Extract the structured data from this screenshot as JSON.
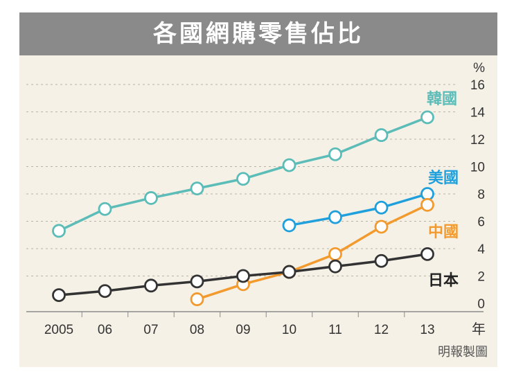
{
  "chart_data": {
    "type": "line",
    "title": "各國網購零售佔比",
    "x": [
      "2005",
      "06",
      "07",
      "08",
      "09",
      "10",
      "11",
      "12",
      "13"
    ],
    "x_unit": "年",
    "y_unit": "%",
    "y_ticks": [
      "0",
      "2",
      "4",
      "6",
      "8",
      "10",
      "12",
      "14",
      "16"
    ],
    "ylim": [
      0,
      16
    ],
    "grid": true,
    "series": [
      {
        "name": "韓國",
        "color": "#5bbcb8",
        "label_color": "#5bbcb8",
        "x": [
          "2005",
          "06",
          "07",
          "08",
          "09",
          "10",
          "11",
          "12",
          "13"
        ],
        "values": [
          5.3,
          6.9,
          7.7,
          8.4,
          9.1,
          10.1,
          10.9,
          12.3,
          13.6
        ]
      },
      {
        "name": "美國",
        "color": "#1fa0dc",
        "label_color": "#1fa0dc",
        "x": [
          "10",
          "11",
          "12",
          "13"
        ],
        "values": [
          5.7,
          6.3,
          7.0,
          8.0
        ]
      },
      {
        "name": "中國",
        "color": "#f39a2e",
        "label_color": "#f39a2e",
        "x": [
          "08",
          "09",
          "10",
          "11",
          "12",
          "13"
        ],
        "values": [
          0.3,
          1.4,
          2.3,
          3.6,
          5.6,
          7.2
        ]
      },
      {
        "name": "日本",
        "color": "#333333",
        "label_color": "#222222",
        "x": [
          "2005",
          "06",
          "07",
          "08",
          "09",
          "10",
          "11",
          "12",
          "13"
        ],
        "values": [
          0.6,
          0.9,
          1.3,
          1.6,
          2.0,
          2.3,
          2.7,
          3.1,
          3.6
        ]
      }
    ],
    "credit": "明報製圖"
  }
}
